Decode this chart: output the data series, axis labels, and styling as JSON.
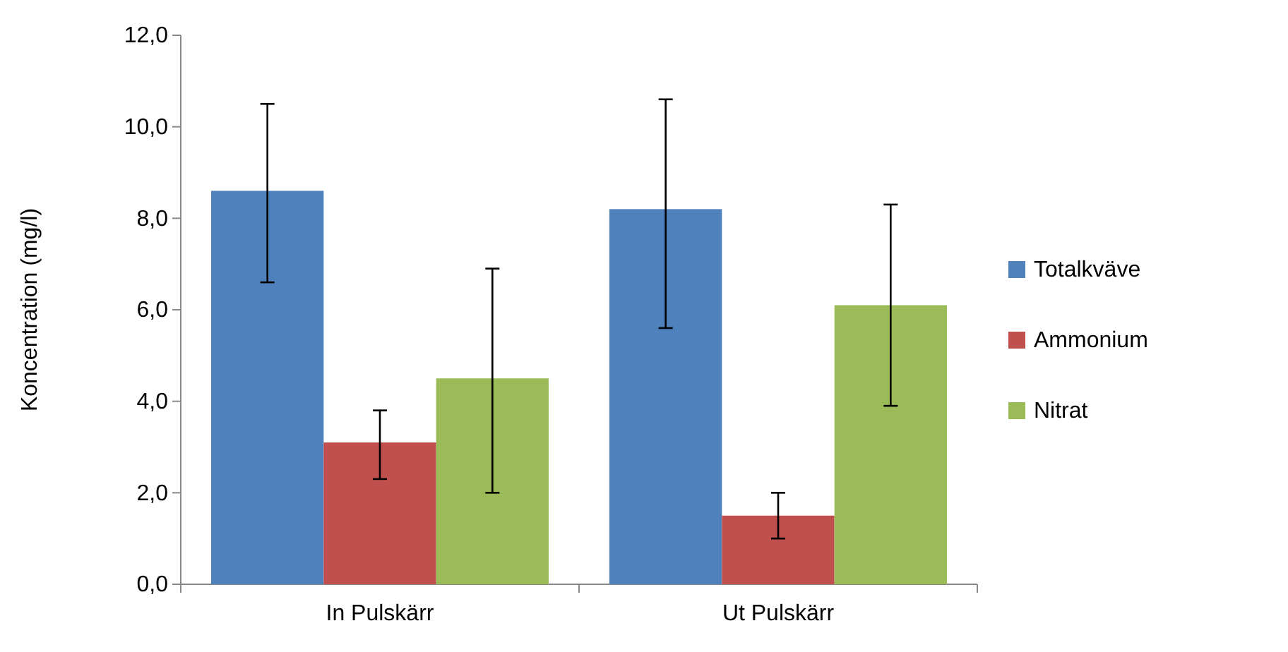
{
  "chart_data": {
    "type": "bar",
    "ylabel": "Koncentration  (mg/l)",
    "categories": [
      "In Pulskärr",
      "Ut Pulskärr"
    ],
    "series": [
      {
        "name": "Totalkväve",
        "color": "#4f81bd",
        "values": [
          8.6,
          8.2
        ],
        "errors": [
          [
            6.6,
            10.5
          ],
          [
            5.6,
            10.6
          ]
        ]
      },
      {
        "name": "Ammonium",
        "color": "#c0504d",
        "values": [
          3.1,
          1.5
        ],
        "errors": [
          [
            2.3,
            3.8
          ],
          [
            1.0,
            2.0
          ]
        ]
      },
      {
        "name": "Nitrat",
        "color": "#9bbb59",
        "values": [
          4.5,
          6.1
        ],
        "errors": [
          [
            2.0,
            6.9
          ],
          [
            3.9,
            8.3
          ]
        ]
      }
    ],
    "ylim": [
      0,
      12
    ],
    "yticks": [
      {
        "value": 0,
        "label": "0,0"
      },
      {
        "value": 2,
        "label": "2,0"
      },
      {
        "value": 4,
        "label": "4,0"
      },
      {
        "value": 6,
        "label": "6,0"
      },
      {
        "value": 8,
        "label": "8,0"
      },
      {
        "value": 10,
        "label": "10,0"
      },
      {
        "value": 12,
        "label": "12,0"
      }
    ],
    "legend": "right",
    "grid": false
  }
}
